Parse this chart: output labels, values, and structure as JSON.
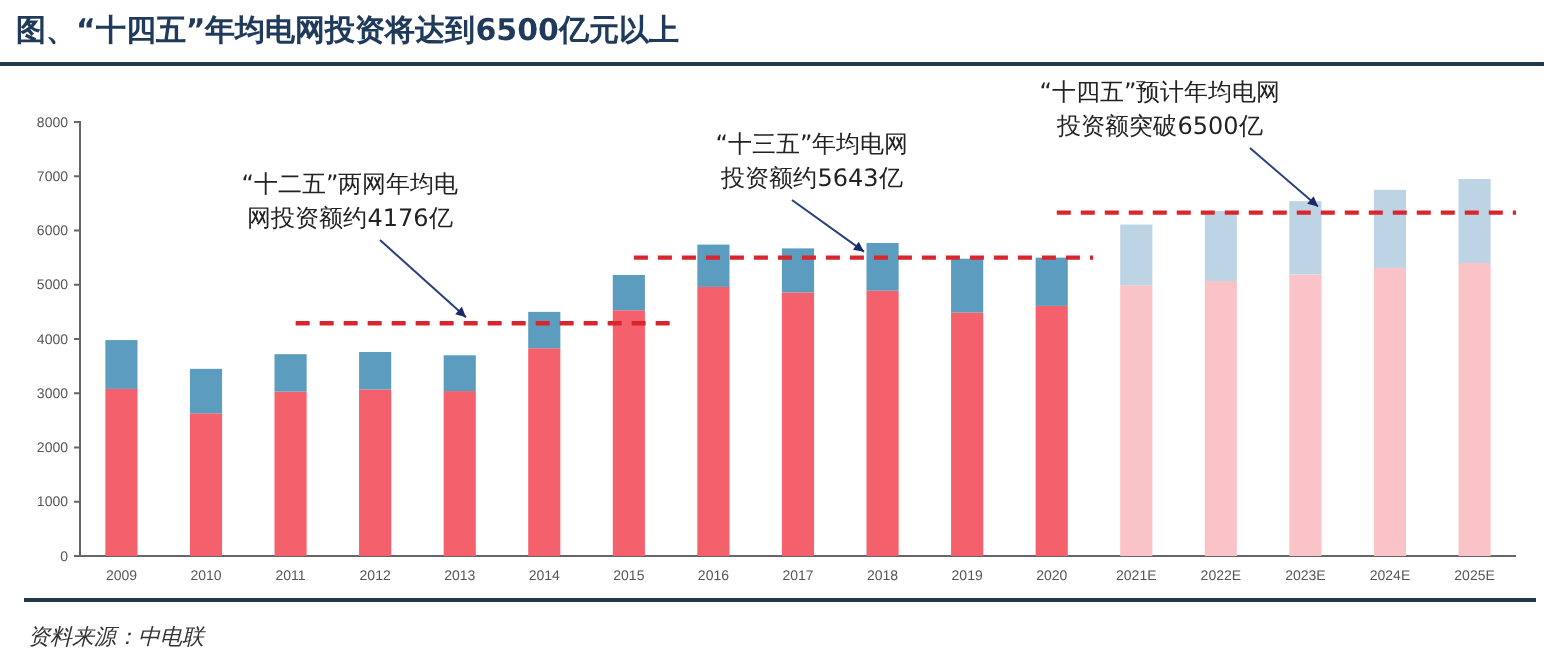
{
  "chart_data": {
    "type": "bar",
    "title": "图、“十四五”年均电网投资将达到6500亿元以上",
    "categories": [
      "2009",
      "2010",
      "2011",
      "2012",
      "2013",
      "2014",
      "2015",
      "2016",
      "2017",
      "2018",
      "2019",
      "2020",
      "2021E",
      "2022E",
      "2023E",
      "2024E",
      "2025E"
    ],
    "stacked": true,
    "series": [
      {
        "colors": [
          "#f4606c",
          "#f4606c",
          "#f4606c",
          "#f4606c",
          "#f4606c",
          "#f4606c",
          "#f4606c",
          "#f4606c",
          "#f4606c",
          "#f4606c",
          "#f4606c",
          "#f4606c",
          "#f9c3c8",
          "#f9c3c8",
          "#f9c3c8",
          "#f9c3c8",
          "#f9c3c8"
        ],
        "values": [
          3080,
          2630,
          3030,
          3070,
          3040,
          3830,
          4530,
          4960,
          4860,
          4890,
          4490,
          4610,
          4990,
          5070,
          5190,
          5310,
          5400
        ]
      },
      {
        "colors": [
          "#5b9cbf",
          "#5b9cbf",
          "#5b9cbf",
          "#5b9cbf",
          "#5b9cbf",
          "#5b9cbf",
          "#5b9cbf",
          "#5b9cbf",
          "#5b9cbf",
          "#5b9cbf",
          "#5b9cbf",
          "#5b9cbf",
          "#bcd4e4",
          "#bcd4e4",
          "#bcd4e4",
          "#bcd4e4",
          "#bcd4e4"
        ],
        "values": [
          900,
          820,
          690,
          690,
          660,
          670,
          650,
          780,
          810,
          880,
          990,
          890,
          1120,
          1290,
          1350,
          1440,
          1550
        ]
      }
    ],
    "ylim": [
      0,
      8000
    ],
    "yticks": [
      0,
      1000,
      2000,
      3000,
      4000,
      5000,
      6000,
      7000,
      8000
    ],
    "ref_lines": [
      {
        "axis": "y",
        "value": 4290,
        "label": "“十二五”两网年均电网投资额约4176亿",
        "color": "#d9262e",
        "line_style": "dashed"
      },
      {
        "axis": "y",
        "value": 5500,
        "label": "“十三五”年均电网投资额约5643亿",
        "color": "#d9262e",
        "line_style": "dashed"
      },
      {
        "axis": "y",
        "value": 6330,
        "label": "“十四五”预计年均电网投资额突破6500亿",
        "color": "#d9262e",
        "line_style": "dashed"
      }
    ],
    "annotations": [
      "资料来源：中电联"
    ],
    "grid": false
  }
}
